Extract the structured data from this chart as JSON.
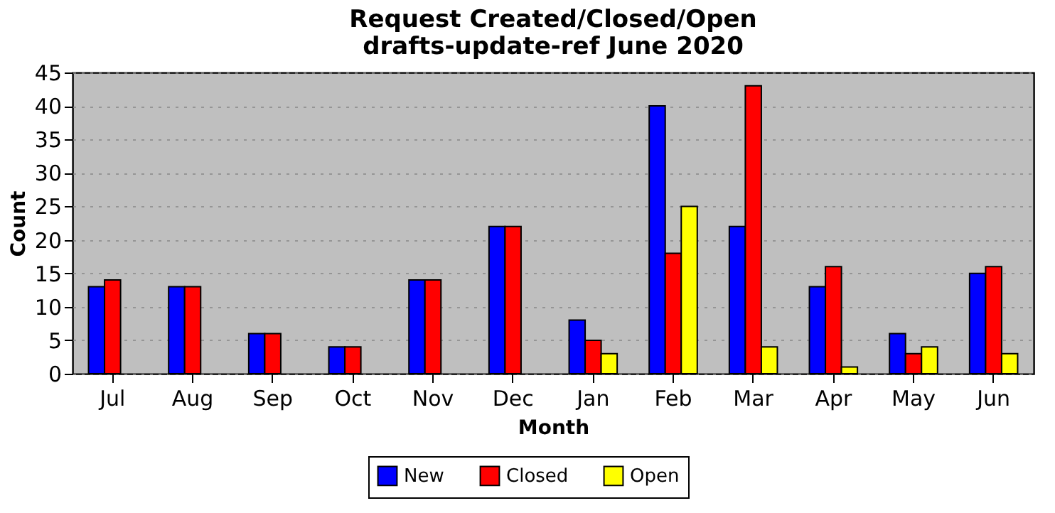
{
  "chart_data": {
    "type": "bar",
    "title": "Request Created/Closed/Open\ndrafts-update-ref June 2020",
    "xlabel": "Month",
    "ylabel": "Count",
    "categories": [
      "Jul",
      "Aug",
      "Sep",
      "Oct",
      "Nov",
      "Dec",
      "Jan",
      "Feb",
      "Mar",
      "Apr",
      "May",
      "Jun"
    ],
    "series": [
      {
        "name": "New",
        "color": "#0000ff",
        "values": [
          13,
          13,
          6,
          4,
          14,
          22,
          8,
          40,
          22,
          13,
          6,
          15
        ]
      },
      {
        "name": "Closed",
        "color": "#ff0000",
        "values": [
          14,
          13,
          6,
          4,
          14,
          22,
          5,
          18,
          43,
          16,
          3,
          16
        ]
      },
      {
        "name": "Open",
        "color": "#ffff00",
        "values": [
          0,
          0,
          0,
          0,
          0,
          0,
          3,
          25,
          4,
          1,
          4,
          3
        ]
      }
    ],
    "ylim": [
      0,
      45
    ],
    "yticks": [
      0,
      5,
      10,
      15,
      20,
      25,
      30,
      35,
      40,
      45
    ],
    "grid": "y",
    "legend": "bottom"
  }
}
